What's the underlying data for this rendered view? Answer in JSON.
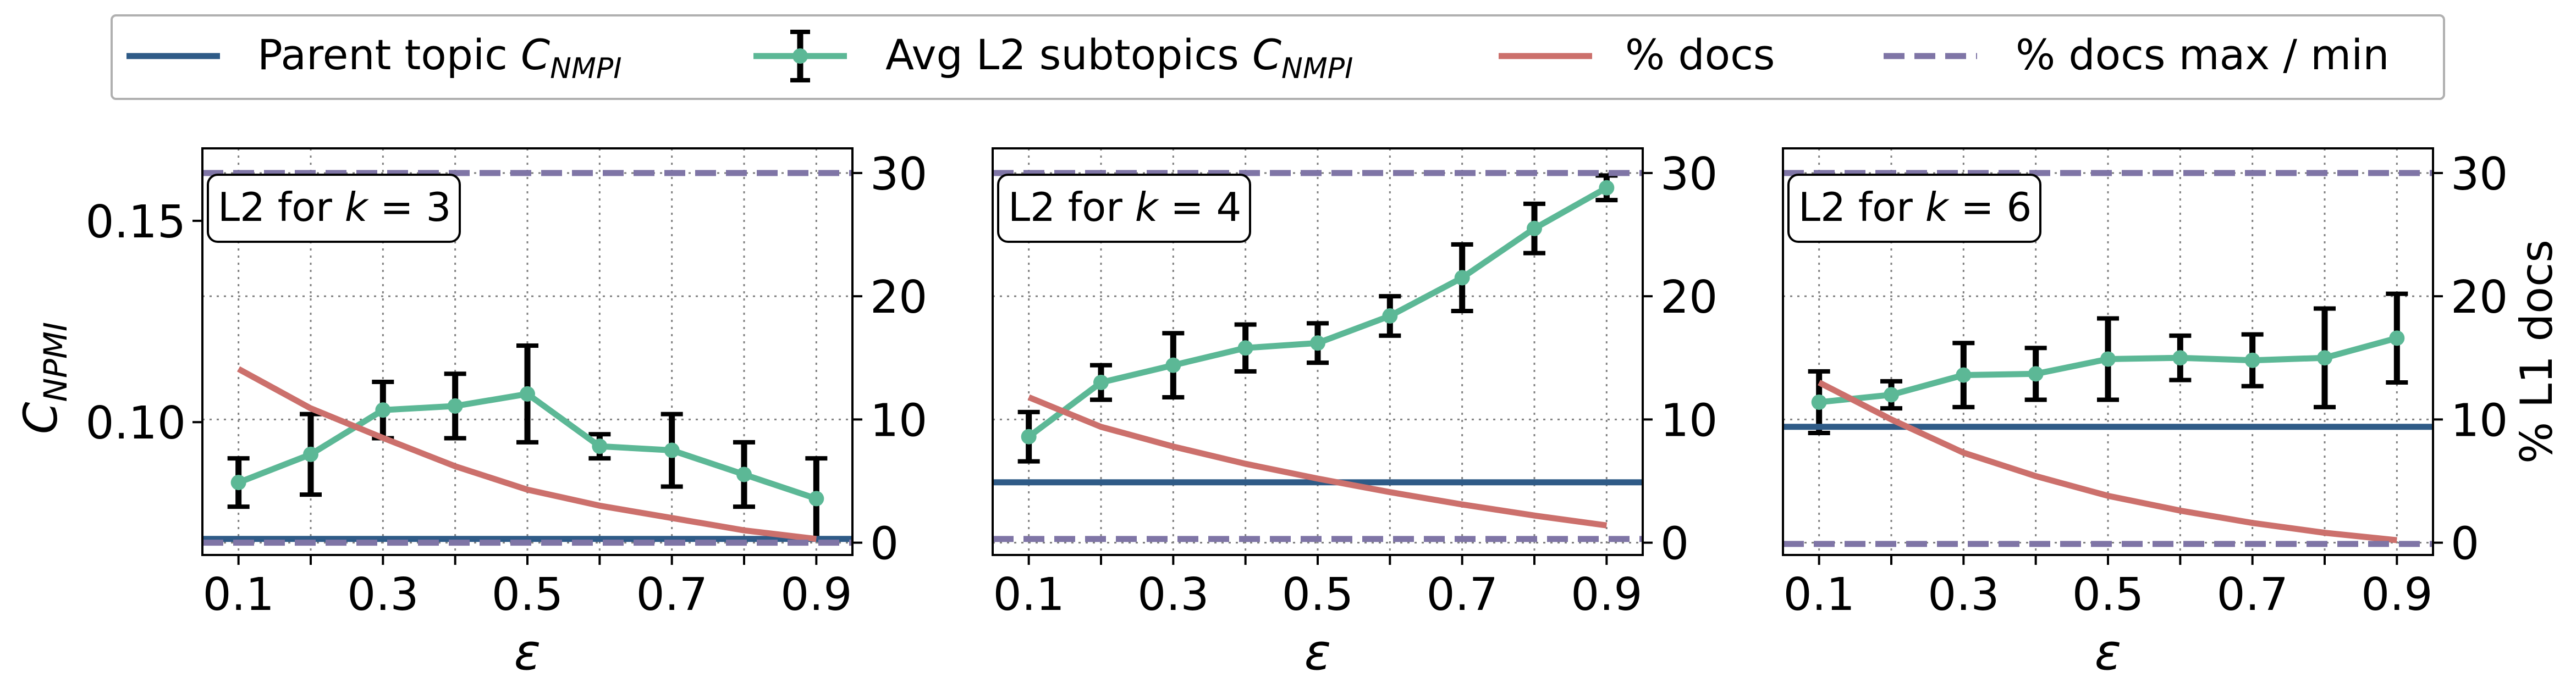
{
  "legend": {
    "placement": "top-center, above panels",
    "entries": [
      {
        "key": "parent",
        "text": "Parent topic ",
        "math": "C",
        "sub": "NMPI",
        "style": "solid",
        "color": "#2f5b87"
      },
      {
        "key": "avg",
        "text": "Avg L2 subtopics ",
        "math": "C",
        "sub": "NMPI",
        "style": "errorbar",
        "color": "#5cb896"
      },
      {
        "key": "docs",
        "text": "% docs",
        "math": "",
        "sub": "",
        "style": "solid",
        "color": "#cc706c"
      },
      {
        "key": "docsmm",
        "text": "% docs max / min",
        "math": "",
        "sub": "",
        "style": "dashed",
        "color": "#7f75a6"
      }
    ]
  },
  "axes": {
    "y_left_label": {
      "main": "C",
      "sub": "NPMI"
    },
    "y_right_label": "% L1 docs",
    "x_label": "ε",
    "x_ticks": [
      "0.1",
      "0.3",
      "0.5",
      "0.7",
      "0.9"
    ],
    "y_left_ticks": [
      "0.10",
      "0.15"
    ],
    "y_right_ticks": [
      "0",
      "10",
      "20",
      "30"
    ]
  },
  "chart_data": [
    {
      "type": "line",
      "panel_label": {
        "prefix": "L2 for ",
        "var": "k",
        "eq": " = ",
        "val": "3"
      },
      "x": [
        0.1,
        0.2,
        0.3,
        0.4,
        0.5,
        0.6,
        0.7,
        0.8,
        0.9
      ],
      "xlim": [
        0.05,
        0.95
      ],
      "ylim_left": [
        0.067,
        0.168
      ],
      "ylim_right": [
        -1,
        32
      ],
      "grid": true,
      "show_left_axis": true,
      "show_right_label": false,
      "series": [
        {
          "name": "Avg L2 subtopics C_NMPI",
          "axis": "left",
          "values": [
            0.085,
            0.092,
            0.103,
            0.104,
            0.107,
            0.094,
            0.093,
            0.087,
            0.081
          ],
          "err": [
            0.006,
            0.01,
            0.007,
            0.008,
            0.012,
            0.003,
            0.009,
            0.008,
            0.01
          ]
        },
        {
          "name": "Parent topic C_NMPI",
          "axis": "left",
          "constant": 0.071
        },
        {
          "name": "% docs",
          "axis": "right",
          "values": [
            14.1,
            10.9,
            8.5,
            6.2,
            4.3,
            3.0,
            2.0,
            1.0,
            0.3
          ]
        },
        {
          "name": "% docs max / min",
          "axis": "right",
          "constants": [
            30.0,
            0.0
          ]
        }
      ]
    },
    {
      "type": "line",
      "panel_label": {
        "prefix": "L2 for ",
        "var": "k",
        "eq": " = ",
        "val": "4"
      },
      "x": [
        0.1,
        0.2,
        0.3,
        0.4,
        0.5,
        0.6,
        0.7,
        0.8,
        0.9
      ],
      "xlim": [
        0.05,
        0.95
      ],
      "ylim_left": [
        0.067,
        0.168
      ],
      "ylim_right": [
        -1,
        32
      ],
      "grid": true,
      "show_left_axis": false,
      "show_right_label": false,
      "series": [
        {
          "name": "Avg L2 subtopics C_NMPI",
          "axis": "right",
          "values": [
            8.6,
            13.0,
            14.4,
            15.8,
            16.2,
            18.4,
            21.5,
            25.5,
            28.8
          ],
          "err": [
            2.0,
            1.4,
            2.6,
            1.9,
            1.6,
            1.6,
            2.7,
            2.0,
            1.0
          ]
        },
        {
          "name": "Parent topic C_NMPI",
          "axis": "right",
          "constant": 4.9
        },
        {
          "name": "% docs",
          "axis": "right",
          "values": [
            11.8,
            9.4,
            7.8,
            6.4,
            5.2,
            4.1,
            3.1,
            2.2,
            1.4
          ]
        },
        {
          "name": "% docs max / min",
          "axis": "right",
          "constants": [
            30.0,
            0.3
          ]
        }
      ]
    },
    {
      "type": "line",
      "panel_label": {
        "prefix": "L2 for ",
        "var": "k",
        "eq": " = ",
        "val": "6"
      },
      "x": [
        0.1,
        0.2,
        0.3,
        0.4,
        0.5,
        0.6,
        0.7,
        0.8,
        0.9
      ],
      "xlim": [
        0.05,
        0.95
      ],
      "ylim_left": [
        0.067,
        0.168
      ],
      "ylim_right": [
        -1,
        32
      ],
      "grid": true,
      "show_left_axis": false,
      "show_right_label": true,
      "series": [
        {
          "name": "Avg L2 subtopics C_NMPI",
          "axis": "right",
          "values": [
            11.4,
            12.0,
            13.6,
            13.7,
            14.9,
            15.0,
            14.8,
            15.0,
            16.6
          ],
          "err": [
            2.5,
            1.1,
            2.6,
            2.1,
            3.3,
            1.8,
            2.1,
            4.0,
            3.6
          ]
        },
        {
          "name": "Parent topic C_NMPI",
          "axis": "right",
          "constant": 9.4
        },
        {
          "name": "% docs",
          "axis": "right",
          "values": [
            13.0,
            10.0,
            7.3,
            5.4,
            3.8,
            2.6,
            1.6,
            0.8,
            0.2
          ]
        },
        {
          "name": "% docs max / min",
          "axis": "right",
          "constants": [
            30.0,
            -0.1
          ]
        }
      ]
    }
  ]
}
